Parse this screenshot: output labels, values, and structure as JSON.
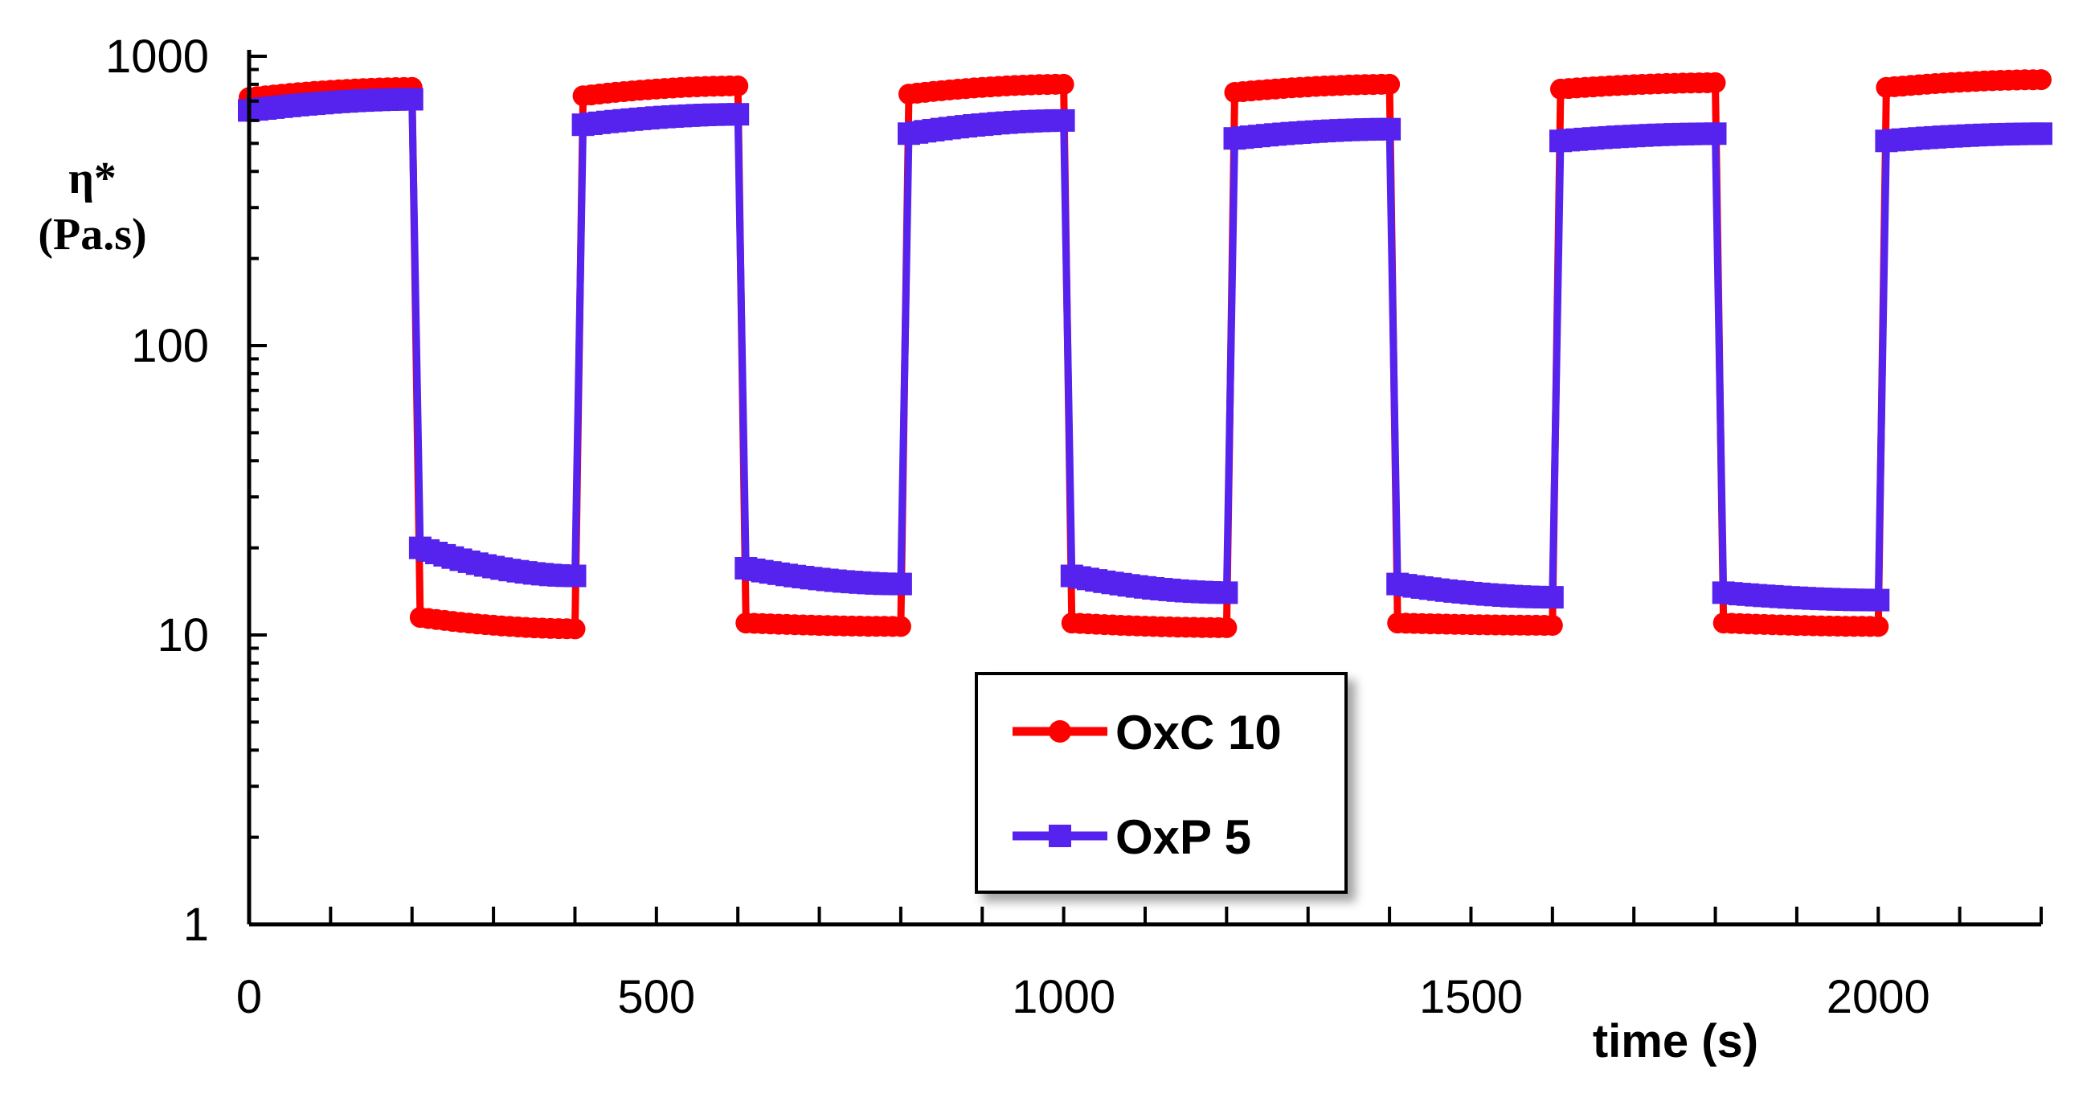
{
  "chart_data": {
    "type": "line",
    "title": "",
    "ylabel_line1": "η*",
    "ylabel_line2": "(Pa.s)",
    "xlabel": "time (s)",
    "xlim": [
      0,
      2200
    ],
    "ylim": [
      1,
      1000
    ],
    "yscale": "log",
    "x_ticks": [
      0,
      500,
      1000,
      1500,
      2000
    ],
    "x_tick_labels": [
      "0",
      "500",
      "1000",
      "1500",
      "2000"
    ],
    "y_ticks": [
      1,
      10,
      100,
      1000
    ],
    "y_tick_labels": [
      "1",
      "10",
      "100",
      "1000"
    ],
    "grid": false,
    "legend_position": "center",
    "series": [
      {
        "name": "OxC 10",
        "color": "#ff0000",
        "marker": "circle",
        "segments": [
          {
            "x_start": 0,
            "x_end": 200,
            "y_start": 720,
            "y_end": 780
          },
          {
            "x_start": 210,
            "x_end": 400,
            "y_start": 11.5,
            "y_end": 10.5
          },
          {
            "x_start": 410,
            "x_end": 600,
            "y_start": 730,
            "y_end": 790
          },
          {
            "x_start": 610,
            "x_end": 800,
            "y_start": 11.0,
            "y_end": 10.7
          },
          {
            "x_start": 810,
            "x_end": 1000,
            "y_start": 740,
            "y_end": 800
          },
          {
            "x_start": 1010,
            "x_end": 1200,
            "y_start": 11.0,
            "y_end": 10.6
          },
          {
            "x_start": 1210,
            "x_end": 1400,
            "y_start": 750,
            "y_end": 800
          },
          {
            "x_start": 1410,
            "x_end": 1600,
            "y_start": 11.0,
            "y_end": 10.8
          },
          {
            "x_start": 1610,
            "x_end": 1800,
            "y_start": 770,
            "y_end": 810
          },
          {
            "x_start": 1810,
            "x_end": 2000,
            "y_start": 11.0,
            "y_end": 10.7
          },
          {
            "x_start": 2010,
            "x_end": 2200,
            "y_start": 780,
            "y_end": 830
          }
        ]
      },
      {
        "name": "OxP 5",
        "color": "#5522ee",
        "marker": "square",
        "segments": [
          {
            "x_start": 0,
            "x_end": 200,
            "y_start": 650,
            "y_end": 710
          },
          {
            "x_start": 210,
            "x_end": 400,
            "y_start": 20,
            "y_end": 16
          },
          {
            "x_start": 410,
            "x_end": 600,
            "y_start": 580,
            "y_end": 630
          },
          {
            "x_start": 610,
            "x_end": 800,
            "y_start": 17,
            "y_end": 15
          },
          {
            "x_start": 810,
            "x_end": 1000,
            "y_start": 540,
            "y_end": 600
          },
          {
            "x_start": 1010,
            "x_end": 1200,
            "y_start": 16,
            "y_end": 14
          },
          {
            "x_start": 1210,
            "x_end": 1400,
            "y_start": 520,
            "y_end": 560
          },
          {
            "x_start": 1410,
            "x_end": 1600,
            "y_start": 15,
            "y_end": 13.5
          },
          {
            "x_start": 1610,
            "x_end": 1800,
            "y_start": 510,
            "y_end": 540
          },
          {
            "x_start": 1810,
            "x_end": 2000,
            "y_start": 14,
            "y_end": 13.2
          },
          {
            "x_start": 2010,
            "x_end": 2200,
            "y_start": 510,
            "y_end": 540
          }
        ]
      }
    ]
  }
}
